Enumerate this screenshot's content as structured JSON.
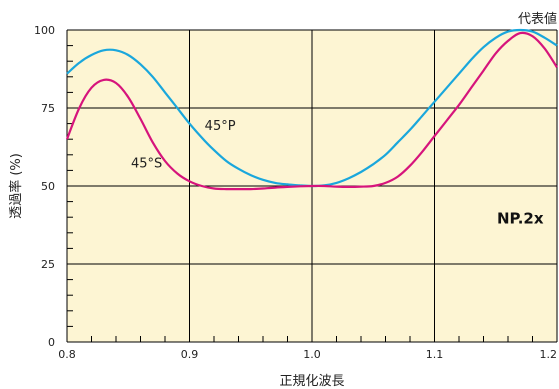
{
  "chart_data": {
    "type": "line",
    "title": "",
    "xlabel": "正規化波長",
    "ylabel": "透過率 (%)",
    "xlim": [
      0.8,
      1.2
    ],
    "ylim": [
      0,
      100
    ],
    "x_ticks": [
      "0.8",
      "0.9",
      "1.0",
      "1.1",
      "1.2"
    ],
    "y_ticks": [
      "0",
      "25",
      "50",
      "75",
      "100"
    ],
    "grid": true,
    "series": [
      {
        "name": "45°P",
        "color": "#1aa7dc",
        "x": [
          0.8,
          0.81,
          0.82,
          0.83,
          0.84,
          0.85,
          0.86,
          0.87,
          0.88,
          0.89,
          0.9,
          0.91,
          0.92,
          0.93,
          0.94,
          0.95,
          0.96,
          0.97,
          0.98,
          0.99,
          1.0,
          1.01,
          1.02,
          1.03,
          1.04,
          1.05,
          1.06,
          1.07,
          1.08,
          1.09,
          1.1,
          1.11,
          1.12,
          1.13,
          1.14,
          1.15,
          1.16,
          1.17,
          1.18,
          1.19,
          1.2
        ],
        "y": [
          86,
          89.5,
          92,
          93.5,
          93.5,
          92,
          89,
          85,
          80,
          75,
          70,
          65.5,
          61.5,
          58,
          55.5,
          53.5,
          52,
          51,
          50.5,
          50.2,
          50,
          50.2,
          51,
          52.5,
          54.5,
          57,
          60,
          64,
          68,
          72.5,
          77,
          81.5,
          86,
          90.5,
          94.5,
          97.5,
          99.5,
          100,
          99.5,
          97.5,
          95
        ]
      },
      {
        "name": "45°S",
        "color": "#d6147c",
        "x": [
          0.8,
          0.81,
          0.82,
          0.83,
          0.84,
          0.85,
          0.86,
          0.87,
          0.88,
          0.89,
          0.9,
          0.91,
          0.92,
          0.93,
          0.94,
          0.95,
          0.96,
          0.97,
          0.98,
          0.99,
          1.0,
          1.01,
          1.02,
          1.03,
          1.04,
          1.05,
          1.06,
          1.07,
          1.08,
          1.09,
          1.1,
          1.11,
          1.12,
          1.13,
          1.14,
          1.15,
          1.16,
          1.17,
          1.18,
          1.19,
          1.2
        ],
        "y": [
          65,
          75,
          81.5,
          84,
          83,
          78.5,
          71.5,
          64,
          58,
          54,
          51.5,
          50,
          49.2,
          49,
          49,
          49,
          49.2,
          49.5,
          49.7,
          49.9,
          50,
          50,
          49.8,
          49.7,
          49.8,
          50,
          51,
          53,
          56.5,
          61,
          66,
          71,
          76,
          81.5,
          87,
          92.5,
          96.5,
          99,
          98,
          94,
          88
        ]
      }
    ],
    "annotations": [
      {
        "text": "45°P",
        "x": 0.925,
        "y": 68
      },
      {
        "text": "45°S",
        "x": 0.865,
        "y": 56
      },
      {
        "text": "NP.2x",
        "x": 1.17,
        "y": 38
      },
      {
        "text": "代表値",
        "x": 1.2,
        "y": 103
      }
    ]
  },
  "colors": {
    "plot_background": "#fdf5d3",
    "grid": "#000000"
  }
}
